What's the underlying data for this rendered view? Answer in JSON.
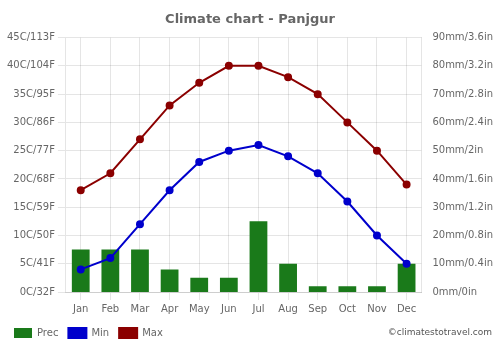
{
  "chart_data": {
    "type": "bar",
    "title": "Climate chart - Panjgur",
    "categories": [
      "Jan",
      "Feb",
      "Mar",
      "Apr",
      "May",
      "Jun",
      "Jul",
      "Aug",
      "Sep",
      "Oct",
      "Nov",
      "Dec"
    ],
    "series": [
      {
        "name": "Prec",
        "type": "bar",
        "axis": "y2",
        "color": "#1a7a1a",
        "values": [
          15,
          15,
          15,
          8,
          5,
          5,
          25,
          10,
          2,
          2,
          2,
          10
        ]
      },
      {
        "name": "Min",
        "type": "line",
        "marker": "circle",
        "color": "#0000cc",
        "values": [
          4,
          6,
          12,
          18,
          23,
          25,
          26,
          24,
          21,
          16,
          10,
          5
        ]
      },
      {
        "name": "Max",
        "type": "line",
        "marker": "circle",
        "color": "#8b0000",
        "values": [
          18,
          21,
          27,
          33,
          37,
          40,
          40,
          38,
          35,
          30,
          25,
          19
        ]
      }
    ],
    "ylim": [
      0,
      45
    ],
    "yticks": [
      {
        "value": 0,
        "label": "0C/32F"
      },
      {
        "value": 5,
        "label": "5C/41F"
      },
      {
        "value": 10,
        "label": "10C/50F"
      },
      {
        "value": 15,
        "label": "15C/59F"
      },
      {
        "value": 20,
        "label": "20C/68F"
      },
      {
        "value": 25,
        "label": "25C/77F"
      },
      {
        "value": 30,
        "label": "30C/86F"
      },
      {
        "value": 35,
        "label": "35C/95F"
      },
      {
        "value": 40,
        "label": "40C/104F"
      },
      {
        "value": 45,
        "label": "45C/113F"
      }
    ],
    "y2lim": [
      0,
      90
    ],
    "y2ticks": [
      {
        "value": 0,
        "label": "0mm/0in"
      },
      {
        "value": 10,
        "label": "10mm/0.4in"
      },
      {
        "value": 20,
        "label": "20mm/0.8in"
      },
      {
        "value": 30,
        "label": "30mm/1.2in"
      },
      {
        "value": 40,
        "label": "40mm/1.6in"
      },
      {
        "value": 50,
        "label": "50mm/2in"
      },
      {
        "value": 60,
        "label": "60mm/2.4in"
      },
      {
        "value": 70,
        "label": "70mm/2.8in"
      },
      {
        "value": 80,
        "label": "80mm/3.2in"
      },
      {
        "value": 90,
        "label": "90mm/3.6in"
      }
    ],
    "grid": true,
    "legend": "lower left",
    "annotations": [
      "©climatestotravel.com"
    ]
  }
}
